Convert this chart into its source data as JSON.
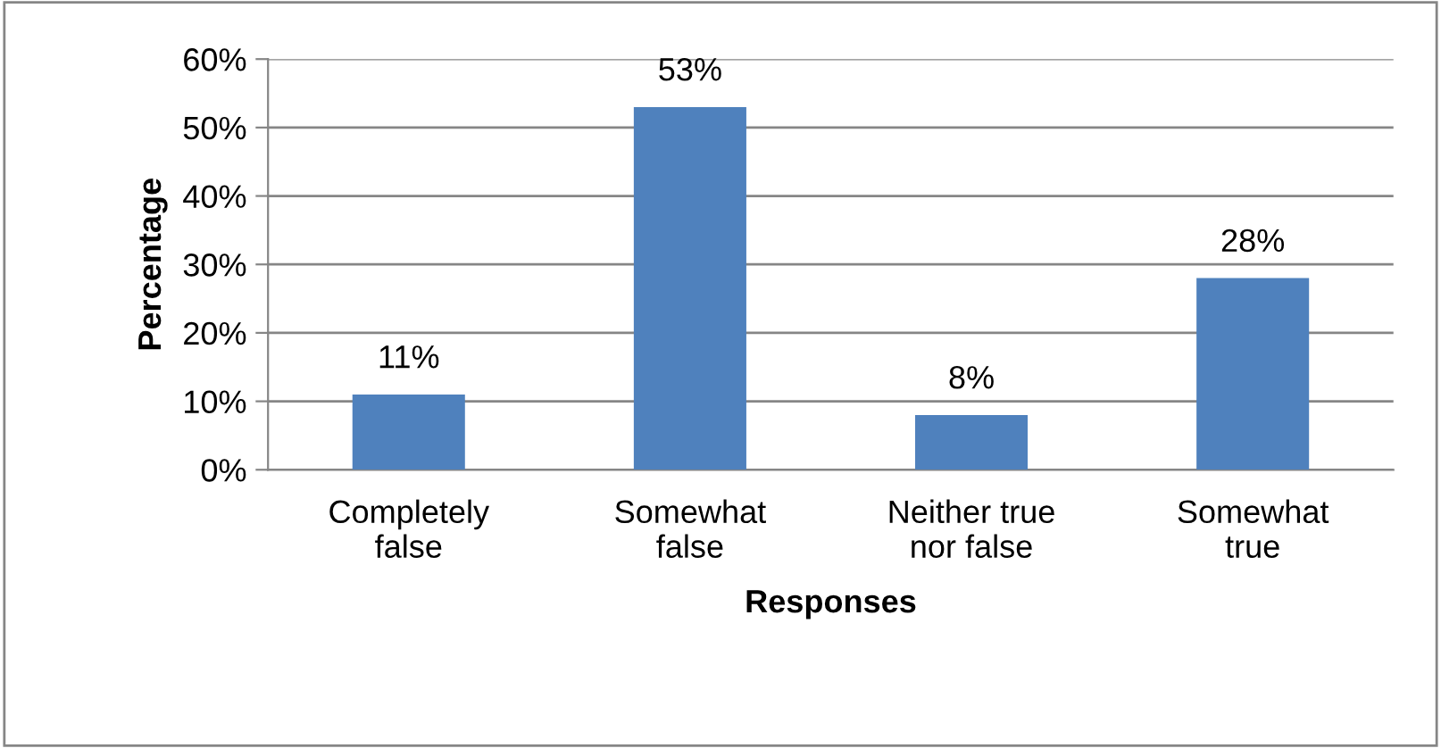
{
  "chart_data": {
    "type": "bar",
    "xlabel": "Responses",
    "ylabel": "Percentage",
    "categories": [
      "Completely\nfalse",
      "Somewhat\nfalse",
      "Neither true\nnor false",
      "Somewhat\ntrue"
    ],
    "values": [
      11,
      53,
      8,
      28
    ],
    "color": "#4f81bd",
    "value_labels": [
      "11%",
      "53%",
      "8%",
      "28%"
    ],
    "ylim": [
      0,
      60
    ],
    "yticks": [
      {
        "value": 0,
        "label": "0%"
      },
      {
        "value": 10,
        "label": "10%"
      },
      {
        "value": 20,
        "label": "20%"
      },
      {
        "value": 30,
        "label": "30%"
      },
      {
        "value": 40,
        "label": "40%"
      },
      {
        "value": 50,
        "label": "50%"
      },
      {
        "value": 60,
        "label": "60%"
      }
    ],
    "grid": "y",
    "legend": false
  }
}
